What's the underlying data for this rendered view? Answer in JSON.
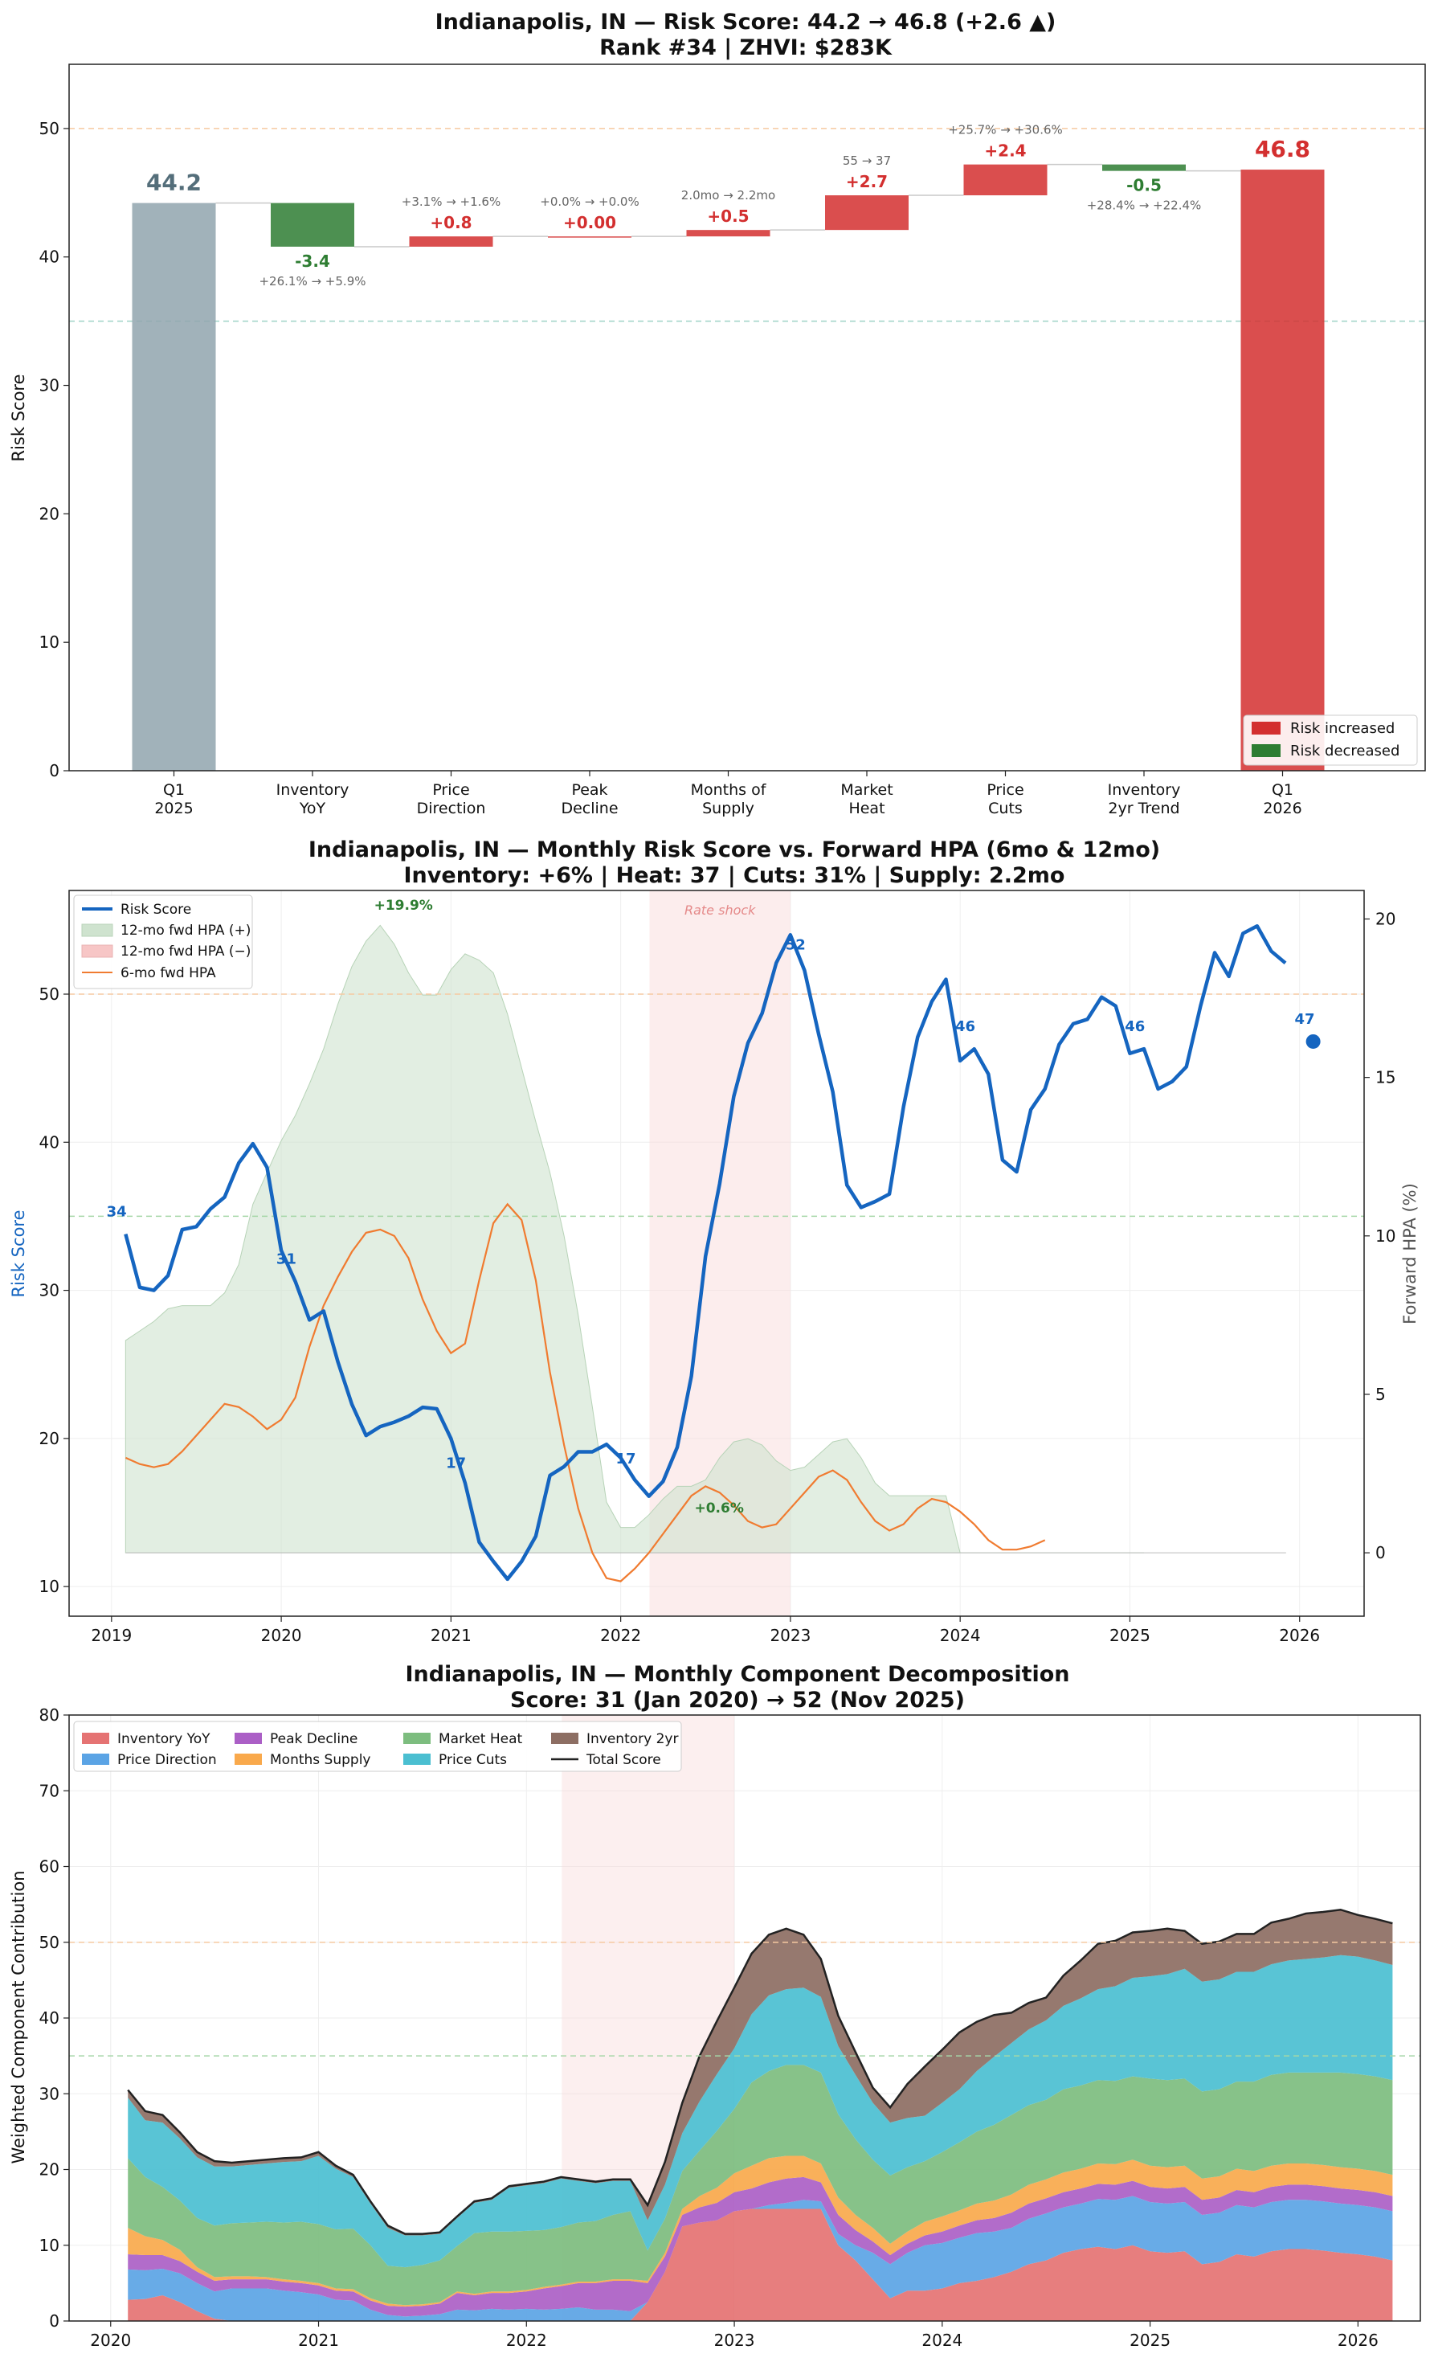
{
  "colors": {
    "risk_up": "#d32f2f",
    "risk_down": "#2e7d32",
    "base_bar": "#90a4ae",
    "base_label": "#546e7a",
    "score_line": "#1565c0",
    "hpa6": "#f07b30",
    "hpa_pos": "#cfe3cf",
    "hpa_neg": "#f7c6c6",
    "shock": "#f8d7d7"
  },
  "chart_data": [
    {
      "type": "bar",
      "subtype": "waterfall",
      "title": "Indianapolis, IN — Risk Score: 44.2 → 46.8 (+2.6 ▲)",
      "subtitle": "Rank #34  |  ZHVI: $283K",
      "ylabel": "Risk Score",
      "ylim": [
        0,
        55
      ],
      "yticks": [
        "0",
        "10",
        "20",
        "30",
        "40",
        "50"
      ],
      "reference_lines": [
        35,
        50
      ],
      "legend": [
        "Risk increased",
        "Risk decreased"
      ],
      "legend_position": "lower-right",
      "bars": [
        {
          "label": [
            "Q1",
            "2025"
          ],
          "kind": "total",
          "value": 44.2,
          "text": "44.2",
          "detail": ""
        },
        {
          "label": [
            "Inventory",
            "YoY"
          ],
          "kind": "delta",
          "value": -3.4,
          "text": "-3.4",
          "detail": "+26.1% → +5.9%"
        },
        {
          "label": [
            "Price",
            "Direction"
          ],
          "kind": "delta",
          "value": 0.8,
          "text": "+0.8",
          "detail": "+3.1% → +1.6%"
        },
        {
          "label": [
            "Peak",
            "Decline"
          ],
          "kind": "delta",
          "value": 0.0,
          "text": "+0.00",
          "detail": "+0.0% → +0.0%"
        },
        {
          "label": [
            "Months of",
            "Supply"
          ],
          "kind": "delta",
          "value": 0.5,
          "text": "+0.5",
          "detail": "2.0mo → 2.2mo"
        },
        {
          "label": [
            "Market",
            "Heat"
          ],
          "kind": "delta",
          "value": 2.7,
          "text": "+2.7",
          "detail": "55 → 37"
        },
        {
          "label": [
            "Price",
            "Cuts"
          ],
          "kind": "delta",
          "value": 2.4,
          "text": "+2.4",
          "detail": "+25.7% → +30.6%"
        },
        {
          "label": [
            "Inventory",
            "2yr Trend"
          ],
          "kind": "delta",
          "value": -0.5,
          "text": "-0.5",
          "detail": "+28.4% → +22.4%"
        },
        {
          "label": [
            "Q1",
            "2026"
          ],
          "kind": "total",
          "value": 46.8,
          "text": "46.8",
          "detail": ""
        }
      ]
    },
    {
      "type": "line",
      "title": "Indianapolis, IN — Monthly Risk Score vs. Forward HPA (6mo & 12mo)",
      "subtitle": "Inventory: +6%  |  Heat: 37  |  Cuts: 31%  |  Supply: 2.2mo",
      "ylabel": "Risk Score",
      "y2label": "Forward HPA (%)",
      "ylim": [
        8,
        57
      ],
      "y2lim": [
        -2,
        20.9
      ],
      "yticks": [
        "10",
        "20",
        "30",
        "40",
        "50"
      ],
      "y2ticks": [
        "0",
        "5",
        "10",
        "15",
        "20"
      ],
      "xlim": [
        2018.75,
        2026.38
      ],
      "xticks": [
        "2019",
        "2020",
        "2021",
        "2022",
        "2023",
        "2024",
        "2025",
        "2026"
      ],
      "reference_lines": [
        35,
        50
      ],
      "shaded_region": {
        "from": 2022.17,
        "to": 2023.0,
        "label": "Rate shock"
      },
      "legend": [
        "Risk Score",
        "12-mo fwd HPA (+)",
        "12-mo fwd HPA (−)",
        "6-mo fwd HPA"
      ],
      "legend_position": "top-left",
      "start": 2019.083,
      "step": 0.0833333,
      "risk_score": [
        33.8,
        30.2,
        30.0,
        31.0,
        34.1,
        34.3,
        35.5,
        36.3,
        38.6,
        39.9,
        38.3,
        32.7,
        30.6,
        28.0,
        28.6,
        25.2,
        22.3,
        20.2,
        20.8,
        21.1,
        21.5,
        22.1,
        22.0,
        20.0,
        17.0,
        13.0,
        11.7,
        10.5,
        11.7,
        13.4,
        17.5,
        18.1,
        19.1,
        19.1,
        19.6,
        18.7,
        17.2,
        16.1,
        17.1,
        19.4,
        24.2,
        32.3,
        37.2,
        43.1,
        46.7,
        48.7,
        52.1,
        54.0,
        51.6,
        47.3,
        43.4,
        37.1,
        35.6,
        36.0,
        36.5,
        42.4,
        47.1,
        49.5,
        51.0,
        45.5,
        46.3,
        44.6,
        38.8,
        38.0,
        42.2,
        43.6,
        46.6,
        48.0,
        48.3,
        49.8,
        49.2,
        46.0,
        46.3,
        43.6,
        44.1,
        45.1,
        49.2,
        52.8,
        51.2,
        54.1,
        54.6,
        52.9,
        52.1
      ],
      "current_point": {
        "x": 2026.08,
        "y": 46.8
      },
      "hpa12": [
        6.7,
        7.0,
        7.3,
        7.7,
        7.8,
        7.8,
        7.8,
        8.2,
        9.1,
        11.0,
        12.0,
        13.0,
        13.8,
        14.8,
        15.9,
        17.3,
        18.5,
        19.3,
        19.8,
        19.2,
        18.3,
        17.6,
        17.6,
        18.4,
        18.9,
        18.7,
        18.3,
        17.0,
        15.3,
        13.6,
        12.0,
        10.0,
        7.5,
        4.6,
        1.6,
        0.8,
        0.8,
        1.2,
        1.7,
        2.1,
        2.1,
        2.3,
        3.0,
        3.5,
        3.6,
        3.4,
        2.9,
        2.6,
        2.7,
        3.1,
        3.5,
        3.6,
        3.0,
        2.2,
        1.8,
        1.8,
        1.8,
        1.8,
        1.8,
        0.0,
        0.0,
        0.0,
        0.0,
        0.0,
        0.0,
        0.0,
        0.0,
        0.0,
        0.0,
        0.0,
        0.0,
        0.0,
        0.0
      ],
      "hpa12_start": 2019.083,
      "hpa6": [
        3.0,
        2.8,
        2.7,
        2.8,
        3.2,
        3.7,
        4.2,
        4.7,
        4.6,
        4.3,
        3.9,
        4.2,
        4.9,
        6.5,
        7.8,
        8.7,
        9.5,
        10.1,
        10.2,
        10.0,
        9.3,
        8.0,
        7.0,
        6.3,
        6.6,
        8.6,
        10.4,
        11.0,
        10.5,
        8.6,
        5.7,
        3.4,
        1.4,
        0.0,
        -0.8,
        -0.9,
        -0.5,
        0.0,
        0.6,
        1.2,
        1.8,
        2.1,
        1.9,
        1.5,
        1.0,
        0.8,
        0.9,
        1.4,
        1.9,
        2.4,
        2.6,
        2.3,
        1.6,
        1.0,
        0.7,
        0.9,
        1.4,
        1.7,
        1.6,
        1.3,
        0.9,
        0.4,
        0.1,
        0.1,
        0.2,
        0.4
      ],
      "hpa6_start": 2019.083,
      "point_labels": [
        {
          "x": 2019.03,
          "y": 35.0,
          "text": "34"
        },
        {
          "x": 2020.03,
          "y": 31.8,
          "text": "31"
        },
        {
          "x": 2021.03,
          "y": 18.0,
          "text": "17"
        },
        {
          "x": 2022.03,
          "y": 18.3,
          "text": "17"
        },
        {
          "x": 2023.03,
          "y": 53.0,
          "text": "52"
        },
        {
          "x": 2024.03,
          "y": 47.5,
          "text": "46"
        },
        {
          "x": 2025.03,
          "y": 47.5,
          "text": "46"
        },
        {
          "x": 2026.03,
          "y": 48.0,
          "text": "47"
        }
      ],
      "annotations": [
        {
          "x": 2020.72,
          "y": 55.7,
          "text": "+19.9%"
        },
        {
          "x": 2022.58,
          "y": 15.0,
          "text": "+0.6%"
        }
      ]
    },
    {
      "type": "area",
      "subtype": "stacked",
      "title": "Indianapolis, IN — Monthly Component Decomposition",
      "subtitle": "Score: 31 (Jan 2020) → 52 (Nov 2025)",
      "ylabel": "Weighted Component Contribution",
      "ylim": [
        0,
        80
      ],
      "yticks": [
        "0",
        "10",
        "20",
        "30",
        "40",
        "50",
        "60",
        "70",
        "80"
      ],
      "xlim": [
        2019.8,
        2026.3
      ],
      "xticks": [
        "2020",
        "2021",
        "2022",
        "2023",
        "2024",
        "2025",
        "2026"
      ],
      "reference_lines": [
        35,
        50
      ],
      "shaded_region": {
        "from": 2022.17,
        "to": 2023.0
      },
      "legend_position": "top-left",
      "start": 2020.083,
      "step": 0.0833333,
      "series": [
        {
          "name": "Inventory YoY",
          "color": "#e57373",
          "values": [
            2.8,
            2.9,
            3.4,
            2.5,
            1.3,
            0.3,
            0.0,
            0.0,
            0.0,
            0.0,
            0.0,
            0.0,
            0.0,
            0.0,
            0.0,
            0.0,
            0.0,
            0.0,
            0.0,
            0.0,
            0.0,
            0.0,
            0.0,
            0.0,
            0.0,
            0.0,
            0.0,
            0.0,
            0.0,
            0.0,
            2.5,
            6.5,
            12.5,
            13.0,
            13.3,
            14.5,
            14.8,
            14.8,
            14.8,
            14.8,
            14.8,
            10.0,
            8.0,
            5.5,
            3.0,
            4.0,
            4.0,
            4.3,
            5.0,
            5.3,
            5.8,
            6.5,
            7.5,
            8.0,
            9.0,
            9.5,
            9.8,
            9.5,
            10.0,
            9.2,
            9.0,
            9.2,
            7.5,
            7.8,
            8.8,
            8.5,
            9.2,
            9.5,
            9.5,
            9.3,
            9.0,
            8.8,
            8.5,
            8.0
          ]
        },
        {
          "name": "Price Direction",
          "color": "#5ba4e5",
          "values": [
            4.0,
            3.8,
            3.5,
            3.8,
            3.7,
            3.6,
            4.3,
            4.3,
            4.3,
            4.0,
            3.8,
            3.5,
            2.8,
            2.7,
            1.5,
            0.8,
            0.6,
            0.7,
            0.9,
            1.5,
            1.4,
            1.6,
            1.5,
            1.6,
            1.5,
            1.6,
            1.8,
            1.5,
            1.5,
            1.3,
            0.0,
            0.0,
            0.0,
            0.0,
            0.0,
            0.0,
            0.0,
            0.5,
            0.8,
            1.2,
            1.0,
            1.5,
            2.0,
            3.5,
            4.5,
            5.0,
            6.0,
            6.0,
            6.0,
            6.3,
            6.0,
            5.8,
            6.0,
            6.2,
            6.0,
            6.0,
            6.3,
            6.5,
            6.5,
            6.5,
            6.5,
            6.5,
            6.5,
            6.5,
            6.5,
            6.5,
            6.5,
            6.5,
            6.5,
            6.5,
            6.5,
            6.5,
            6.5,
            6.5
          ]
        },
        {
          "name": "Peak Decline",
          "color": "#ab5fc6",
          "values": [
            2.0,
            2.0,
            1.8,
            1.6,
            1.5,
            1.4,
            1.2,
            1.2,
            1.2,
            1.2,
            1.2,
            1.2,
            1.2,
            1.2,
            1.2,
            1.2,
            1.3,
            1.3,
            1.4,
            2.2,
            2.0,
            2.1,
            2.2,
            2.3,
            2.8,
            3.0,
            3.2,
            3.5,
            3.8,
            4.0,
            2.5,
            2.0,
            1.5,
            2.0,
            2.3,
            2.5,
            2.7,
            3.0,
            3.2,
            3.0,
            2.5,
            2.5,
            2.0,
            1.5,
            1.2,
            1.2,
            1.3,
            1.5,
            1.6,
            1.7,
            1.8,
            2.0,
            2.0,
            2.0,
            2.0,
            2.0,
            2.0,
            2.0,
            2.0,
            2.0,
            2.0,
            2.0,
            2.0,
            2.0,
            2.0,
            2.0,
            2.0,
            2.0,
            2.0,
            2.0,
            2.0,
            2.0,
            2.0,
            2.0
          ]
        },
        {
          "name": "Months Supply",
          "color": "#f9a94c",
          "values": [
            3.5,
            2.5,
            2.0,
            1.5,
            0.6,
            0.5,
            0.4,
            0.4,
            0.3,
            0.3,
            0.3,
            0.3,
            0.3,
            0.3,
            0.3,
            0.3,
            0.2,
            0.2,
            0.2,
            0.2,
            0.2,
            0.2,
            0.2,
            0.2,
            0.2,
            0.2,
            0.2,
            0.2,
            0.2,
            0.2,
            0.3,
            0.5,
            0.8,
            1.5,
            2.0,
            2.5,
            3.0,
            3.2,
            3.0,
            2.8,
            2.5,
            2.3,
            2.0,
            1.8,
            1.5,
            1.6,
            1.8,
            2.0,
            2.0,
            2.2,
            2.3,
            2.4,
            2.5,
            2.5,
            2.6,
            2.6,
            2.7,
            2.7,
            2.8,
            2.8,
            2.8,
            2.8,
            2.8,
            2.8,
            2.8,
            2.8,
            2.8,
            2.8,
            2.8,
            2.8,
            2.8,
            2.8,
            2.8,
            2.8
          ]
        },
        {
          "name": "Market Heat",
          "color": "#7dbd7f",
          "values": [
            9.2,
            7.8,
            7.0,
            6.5,
            6.5,
            6.8,
            7.0,
            7.1,
            7.3,
            7.5,
            7.8,
            7.8,
            7.8,
            8.0,
            7.0,
            5.0,
            5.0,
            5.2,
            5.5,
            6.0,
            8.0,
            7.9,
            7.9,
            7.8,
            7.5,
            7.6,
            7.8,
            8.0,
            8.5,
            9.0,
            4.0,
            4.5,
            5.0,
            6.0,
            7.5,
            8.5,
            11.0,
            11.5,
            12.0,
            12.0,
            12.0,
            11.0,
            10.0,
            9.0,
            9.0,
            8.5,
            8.0,
            8.5,
            9.0,
            9.5,
            10.0,
            10.5,
            10.5,
            10.5,
            11.0,
            11.0,
            11.0,
            11.0,
            11.0,
            11.5,
            11.5,
            11.5,
            11.5,
            11.5,
            11.5,
            11.8,
            12.0,
            12.0,
            12.0,
            12.2,
            12.5,
            12.5,
            12.5,
            12.5
          ]
        },
        {
          "name": "Price Cuts",
          "color": "#4bbfd1",
          "values": [
            8.0,
            7.5,
            8.5,
            8.2,
            8.0,
            7.8,
            7.5,
            7.6,
            7.7,
            8.0,
            8.0,
            9.0,
            8.0,
            6.8,
            5.5,
            5.0,
            4.2,
            3.9,
            3.5,
            3.7,
            4.0,
            4.2,
            5.8,
            6.0,
            6.2,
            6.4,
            5.5,
            5.0,
            4.5,
            4.0,
            4.0,
            4.5,
            5.0,
            6.5,
            7.5,
            8.0,
            9.0,
            10.0,
            10.0,
            10.2,
            10.0,
            9.0,
            8.5,
            7.5,
            7.0,
            6.5,
            6.0,
            6.5,
            7.0,
            8.0,
            9.0,
            9.5,
            10.0,
            10.5,
            11.0,
            11.5,
            12.0,
            12.5,
            13.0,
            13.5,
            14.0,
            14.5,
            14.5,
            14.5,
            14.5,
            14.5,
            14.6,
            14.8,
            15.0,
            15.2,
            15.5,
            15.5,
            15.3,
            15.2
          ]
        },
        {
          "name": "Inventory 2yr",
          "color": "#8d6e63",
          "values": [
            1.0,
            1.2,
            1.0,
            0.8,
            0.7,
            0.7,
            0.5,
            0.5,
            0.5,
            0.5,
            0.5,
            0.5,
            0.4,
            0.3,
            0.3,
            0.3,
            0.2,
            0.2,
            0.2,
            0.2,
            0.2,
            0.2,
            0.2,
            0.2,
            0.2,
            0.2,
            0.2,
            0.2,
            0.2,
            0.2,
            2.0,
            3.0,
            4.0,
            6.0,
            7.0,
            8.0,
            8.0,
            8.0,
            8.0,
            7.0,
            5.0,
            4.0,
            3.0,
            2.0,
            2.0,
            4.5,
            6.5,
            7.0,
            7.5,
            6.5,
            5.5,
            4.0,
            3.5,
            3.0,
            4.0,
            5.0,
            6.0,
            6.0,
            6.0,
            6.0,
            6.0,
            5.0,
            5.0,
            5.0,
            5.0,
            5.0,
            5.5,
            5.5,
            6.0,
            6.0,
            6.0,
            5.5,
            5.5,
            5.5
          ]
        }
      ],
      "total_name": "Total Score"
    }
  ]
}
